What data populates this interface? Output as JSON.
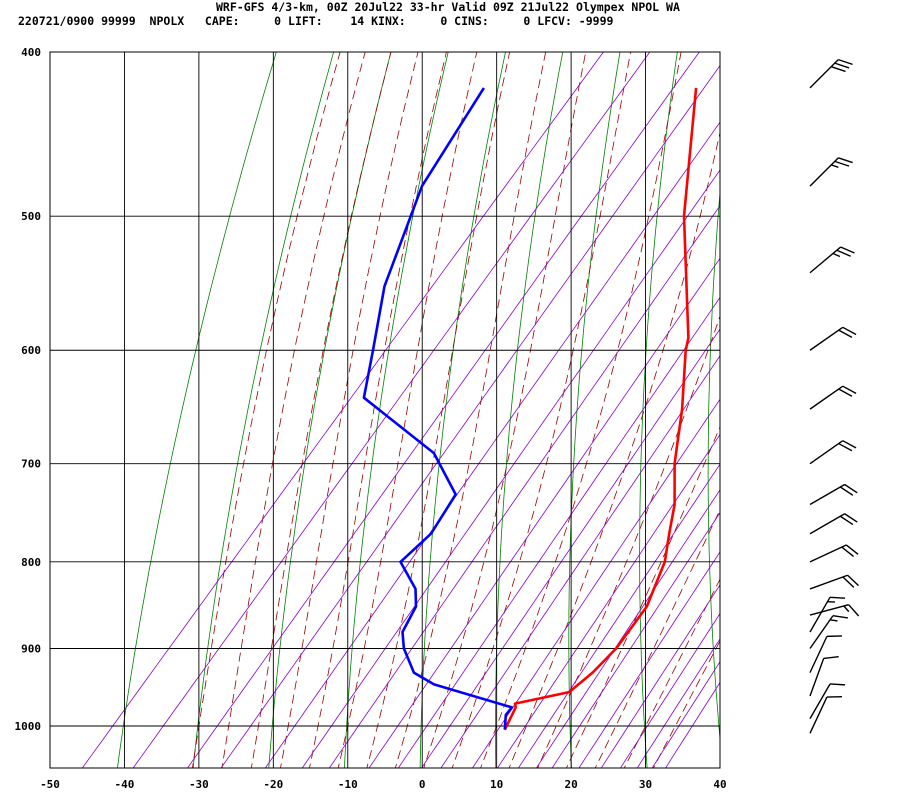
{
  "header": {
    "line1": "WRF-GFS 4/3-km, 00Z 20Jul22 33-hr Valid 09Z 21Jul22 Olympex NPOL WA",
    "line2": "220721/0900 99999  NPOLX   CAPE:     0 LIFT:    14 KINX:     0 CINS:     0 LFCV: -9999"
  },
  "chart_data": {
    "type": "line",
    "subtype": "skew-t log-p sounding",
    "xlabel": "",
    "ylabel": "",
    "x_ticks": [
      -50,
      -40,
      -30,
      -20,
      -10,
      0,
      10,
      20,
      30,
      40
    ],
    "y_ticks": [
      400,
      500,
      600,
      700,
      800,
      900,
      1000
    ],
    "p_range": [
      400,
      1040
    ],
    "log_p": true,
    "grid": true,
    "series": [
      {
        "color": "#ff0000",
        "values": [
          [
            1005,
            11.5
          ],
          [
            975,
            10.5
          ],
          [
            970,
            10
          ],
          [
            955,
            16
          ],
          [
            930,
            17
          ],
          [
            900,
            17.5
          ],
          [
            850,
            17
          ],
          [
            800,
            14.5
          ],
          [
            770,
            12
          ],
          [
            740,
            9.5
          ],
          [
            700,
            5
          ],
          [
            650,
            0
          ],
          [
            600,
            -6
          ],
          [
            590,
            -7
          ],
          [
            500,
            -21
          ],
          [
            420,
            -33.5
          ]
        ]
      },
      {
        "color": "#0000ff",
        "values": [
          [
            1005,
            11.5
          ],
          [
            985,
            10
          ],
          [
            975,
            10
          ],
          [
            945,
            -3
          ],
          [
            930,
            -7
          ],
          [
            900,
            -11
          ],
          [
            880,
            -13
          ],
          [
            850,
            -14
          ],
          [
            830,
            -16
          ],
          [
            800,
            -21
          ],
          [
            770,
            -20
          ],
          [
            730,
            -21
          ],
          [
            690,
            -28.5
          ],
          [
            640,
            -44
          ],
          [
            600,
            -48
          ],
          [
            550,
            -53.5
          ],
          [
            480,
            -59.5
          ],
          [
            420,
            -62
          ]
        ]
      }
    ],
    "wind_barbs": [
      {
        "p": 420,
        "speed_kt": 30,
        "dir_deg": 225
      },
      {
        "p": 480,
        "speed_kt": 25,
        "dir_deg": 225
      },
      {
        "p": 540,
        "speed_kt": 25,
        "dir_deg": 230
      },
      {
        "p": 600,
        "speed_kt": 20,
        "dir_deg": 235
      },
      {
        "p": 650,
        "speed_kt": 20,
        "dir_deg": 235
      },
      {
        "p": 700,
        "speed_kt": 20,
        "dir_deg": 235
      },
      {
        "p": 740,
        "speed_kt": 20,
        "dir_deg": 240
      },
      {
        "p": 770,
        "speed_kt": 20,
        "dir_deg": 240
      },
      {
        "p": 800,
        "speed_kt": 20,
        "dir_deg": 245
      },
      {
        "p": 830,
        "speed_kt": 20,
        "dir_deg": 250
      },
      {
        "p": 860,
        "speed_kt": 15,
        "dir_deg": 255
      },
      {
        "p": 880,
        "speed_kt": 15,
        "dir_deg": 210
      },
      {
        "p": 900,
        "speed_kt": 15,
        "dir_deg": 215
      },
      {
        "p": 930,
        "speed_kt": 10,
        "dir_deg": 205
      },
      {
        "p": 960,
        "speed_kt": 10,
        "dir_deg": 200
      },
      {
        "p": 990,
        "speed_kt": 10,
        "dir_deg": 210
      },
      {
        "p": 1010,
        "speed_kt": 10,
        "dir_deg": 205
      }
    ],
    "colors": {
      "isotherm": "#000000",
      "dry_adiabat": "#008000",
      "moist_adiabat": "#990000",
      "mixing_ratio": "#8800cc",
      "barb": "#000000"
    }
  }
}
